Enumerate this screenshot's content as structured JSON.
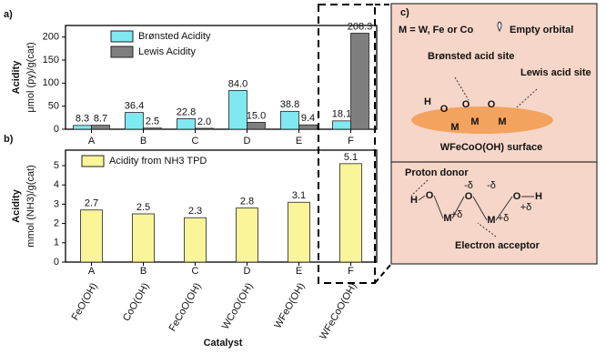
{
  "chart_data": [
    {
      "type": "bar",
      "panel": "a)",
      "ylabel": "Acidity",
      "yunit": "μmol (py)/g(cat)",
      "categories": [
        "A",
        "B",
        "C",
        "D",
        "E",
        "F"
      ],
      "series": [
        {
          "name": "Brønsted Acidity",
          "color": "#7fe8f0",
          "values": [
            8.3,
            36.4,
            22.8,
            84.0,
            38.8,
            18.1
          ],
          "value_labels": [
            "8.3",
            "36.4",
            "22.8",
            "84.0",
            "38.8",
            "18.1"
          ]
        },
        {
          "name": "Lewis Acidity",
          "color": "#7f7f7f",
          "values": [
            8.7,
            2.5,
            2.0,
            15.0,
            9.4,
            208.3
          ],
          "value_labels": [
            "8.7",
            "2.5",
            "2.0",
            "15.0",
            "9.4",
            "208.3"
          ]
        }
      ],
      "ylim": [
        0,
        225
      ],
      "yticks": [
        0,
        50,
        100,
        150,
        200
      ],
      "legend": "upper-left"
    },
    {
      "type": "bar",
      "panel": "b)",
      "ylabel": "Acidity",
      "yunit": "mmol (NH3)/g(cat)",
      "categories": [
        "A",
        "B",
        "C",
        "D",
        "E",
        "F"
      ],
      "catalysts": [
        "FeO(OH)",
        "CoO(OH)",
        "FeCoO(OH)",
        "WCoO(OH)",
        "WFeO(OH)",
        "WFeCoO(OH)"
      ],
      "xlabel": "Catalyst",
      "series": [
        {
          "name": "Acidity from NH3 TPD",
          "color": "#fbf59a",
          "values": [
            2.7,
            2.5,
            2.3,
            2.8,
            3.1,
            5.1
          ]
        }
      ],
      "ylim": [
        0,
        5.8
      ],
      "yticks": [
        0,
        1,
        2,
        3,
        4,
        5
      ],
      "legend": "upper-left"
    }
  ],
  "diagram": {
    "panel": "c)",
    "legend": "M = W, Fe or Co",
    "orbital": "Empty orbital",
    "bronsted": "Brønsted acid site",
    "lewis": "Lewis acid site",
    "surface": "WFeCoO(OH) surface",
    "donor": "Proton donor",
    "acceptor": "Electron acceptor",
    "top_atoms": [
      "H",
      "O",
      "M",
      "O",
      "M",
      "O",
      "M"
    ],
    "bottom_atoms": [
      "H",
      "O",
      "M",
      "O",
      "M",
      "O",
      "H"
    ],
    "charges": [
      "-δ",
      "-δ",
      "+δ",
      "+δ",
      "+δ"
    ]
  }
}
